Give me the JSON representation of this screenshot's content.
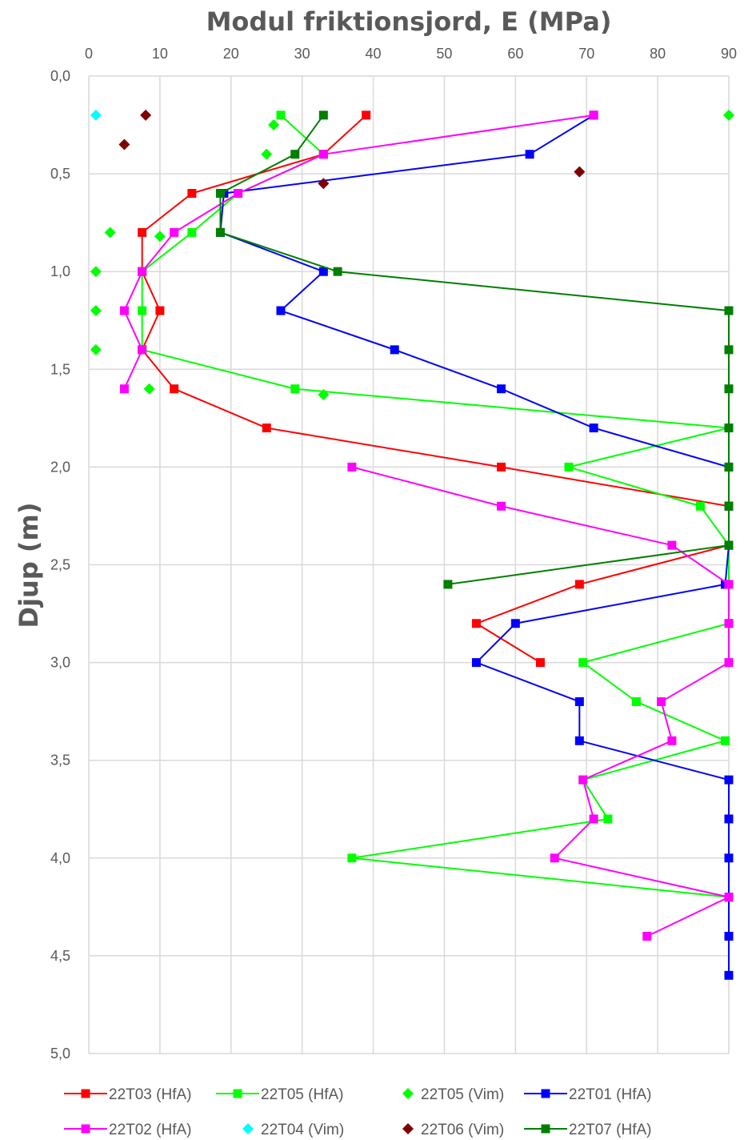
{
  "chart_data": {
    "type": "line",
    "title": "Modul friktionsjord, E (MPa)",
    "xlabel": "",
    "ylabel": "Djup (m)",
    "xlim": [
      0,
      90
    ],
    "ylim": [
      0,
      5
    ],
    "y_inverted": true,
    "x_axis_position": "top",
    "grid": true,
    "legend_position": "bottom",
    "x_ticks": [
      "0",
      "10",
      "20",
      "30",
      "40",
      "50",
      "60",
      "70",
      "80",
      "90"
    ],
    "y_ticks": [
      "0,0",
      "0,5",
      "1,0",
      "1,5",
      "2,0",
      "2,5",
      "3,0",
      "3,5",
      "4,0",
      "4,5",
      "5,0"
    ],
    "series": [
      {
        "name": "22T03 (HfA)",
        "color": "#ff0000",
        "style": "line",
        "marker": "square",
        "points": [
          [
            39,
            0.2
          ],
          [
            33,
            0.4
          ],
          [
            14.5,
            0.6
          ],
          [
            7.5,
            0.8
          ],
          [
            7.5,
            1.0
          ],
          [
            10,
            1.2
          ],
          [
            7.5,
            1.4
          ],
          [
            12,
            1.6
          ],
          [
            25,
            1.8
          ],
          [
            58,
            2.0
          ],
          [
            90,
            2.2
          ],
          [
            90,
            2.4
          ],
          [
            69,
            2.6
          ],
          [
            54.5,
            2.8
          ],
          [
            63.5,
            3.0
          ]
        ]
      },
      {
        "name": "22T05 (HfA)",
        "color": "#00ff00",
        "style": "line",
        "marker": "square",
        "points": [
          [
            27,
            0.2
          ],
          [
            33,
            0.4
          ],
          [
            21,
            0.6
          ],
          [
            14.5,
            0.8
          ],
          [
            7.5,
            1.0
          ],
          [
            7.5,
            1.2
          ],
          [
            7.5,
            1.4
          ],
          [
            29,
            1.6
          ],
          [
            90,
            1.8
          ],
          [
            67.5,
            2.0
          ],
          [
            86,
            2.2
          ],
          [
            90,
            2.4
          ],
          [
            90,
            2.6
          ],
          [
            90,
            2.8
          ],
          [
            69.5,
            3.0
          ],
          [
            77,
            3.2
          ],
          [
            89.5,
            3.4
          ],
          [
            69.5,
            3.6
          ],
          [
            73,
            3.8
          ],
          [
            37,
            4.0
          ],
          [
            90,
            4.2
          ]
        ]
      },
      {
        "name": "22T05 (Vim)",
        "color": "#00ff00",
        "style": "scatter",
        "marker": "diamond",
        "points": [
          [
            90,
            0.2
          ],
          [
            26,
            0.25
          ],
          [
            25,
            0.4
          ],
          [
            3,
            0.8
          ],
          [
            10,
            0.82
          ],
          [
            1,
            1.0
          ],
          [
            1,
            1.2
          ],
          [
            1,
            1.4
          ],
          [
            8.5,
            1.6
          ],
          [
            33,
            1.63
          ]
        ]
      },
      {
        "name": "22T01 (HfA)",
        "color": "#0000ff",
        "style": "line",
        "marker": "square",
        "points": [
          [
            71,
            0.2
          ],
          [
            62,
            0.4
          ],
          [
            19,
            0.6
          ],
          [
            18.5,
            0.8
          ],
          [
            33,
            1.0
          ],
          [
            27,
            1.2
          ],
          [
            43,
            1.4
          ],
          [
            58,
            1.6
          ],
          [
            71,
            1.8
          ],
          [
            90,
            2.0
          ],
          [
            90,
            2.2
          ],
          [
            90,
            2.4
          ],
          [
            89.5,
            2.6
          ],
          [
            60,
            2.8
          ],
          [
            54.5,
            3.0
          ],
          [
            69,
            3.2
          ],
          [
            69,
            3.4
          ],
          [
            90,
            3.6
          ],
          [
            90,
            3.8
          ],
          [
            90,
            4.0
          ],
          [
            90,
            4.2
          ],
          [
            90,
            4.4
          ],
          [
            90,
            4.6
          ]
        ]
      },
      {
        "name": "22T02 (HfA)",
        "color": "#ff00ff",
        "style": "line",
        "marker": "square",
        "points": [
          [
            71,
            0.2
          ],
          [
            33,
            0.4
          ],
          [
            21,
            0.6
          ],
          [
            12,
            0.8
          ],
          [
            7.5,
            1.0
          ],
          [
            5,
            1.2
          ],
          [
            7.5,
            1.4
          ],
          [
            5,
            1.6
          ],
          null,
          [
            37,
            2.0
          ],
          [
            58,
            2.2
          ],
          [
            82,
            2.4
          ],
          [
            90,
            2.6
          ],
          [
            90,
            2.8
          ],
          [
            90,
            3.0
          ],
          [
            80.5,
            3.2
          ],
          [
            82,
            3.4
          ],
          [
            69.5,
            3.6
          ],
          [
            71,
            3.8
          ],
          [
            65.5,
            4.0
          ],
          [
            90,
            4.2
          ],
          [
            78.5,
            4.4
          ]
        ]
      },
      {
        "name": "22T04 (Vim)",
        "color": "#00ffff",
        "style": "scatter",
        "marker": "diamond",
        "points": [
          [
            1,
            0.2
          ]
        ]
      },
      {
        "name": "22T06 (Vim)",
        "color": "#7f0000",
        "style": "scatter",
        "marker": "diamond",
        "points": [
          [
            8,
            0.2
          ],
          [
            5,
            0.35
          ],
          [
            69,
            0.49
          ],
          [
            33,
            0.55
          ]
        ]
      },
      {
        "name": "22T07 (HfA)",
        "color": "#007f00",
        "style": "line",
        "marker": "square",
        "points": [
          [
            33,
            0.2
          ],
          [
            29,
            0.4
          ],
          [
            18.5,
            0.6
          ],
          [
            18.5,
            0.8
          ],
          [
            35,
            1.0
          ],
          [
            90,
            1.2
          ],
          [
            90,
            1.4
          ],
          [
            90,
            1.6
          ],
          [
            90,
            1.8
          ],
          [
            90,
            2.0
          ],
          [
            90,
            2.2
          ],
          [
            90,
            2.4
          ],
          [
            50.5,
            2.6
          ]
        ]
      }
    ]
  }
}
